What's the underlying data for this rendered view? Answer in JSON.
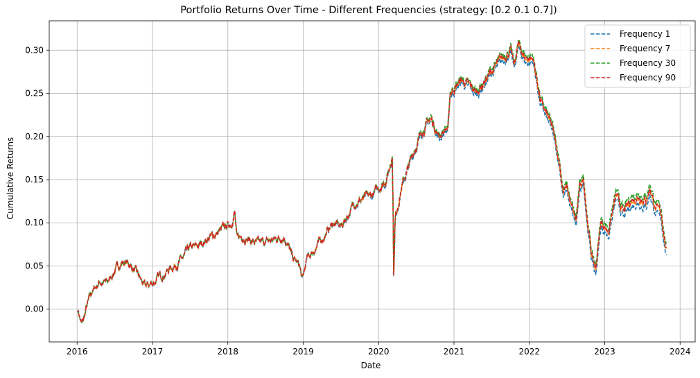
{
  "chart_data": {
    "type": "line",
    "title": "Portfolio Returns Over Time - Different Frequencies (strategy: [0.2 0.1 0.7])",
    "xlabel": "Date",
    "ylabel": "Cumulative Returns",
    "xlim": [
      2015.63,
      2024.2
    ],
    "ylim": [
      -0.038,
      0.334
    ],
    "x_ticks": [
      2016,
      2017,
      2018,
      2019,
      2020,
      2021,
      2022,
      2023,
      2024
    ],
    "x_tick_labels": [
      "2016",
      "2017",
      "2018",
      "2019",
      "2020",
      "2021",
      "2022",
      "2023",
      "2024"
    ],
    "y_ticks": [
      0.0,
      0.05,
      0.1,
      0.15,
      0.2,
      0.25,
      0.3
    ],
    "y_tick_labels": [
      "0.00",
      "0.05",
      "0.10",
      "0.15",
      "0.20",
      "0.25",
      "0.30"
    ],
    "grid": true,
    "line_style": "dashed",
    "legend_position": "top-right",
    "anchor_points": {
      "x": [
        2016.01,
        2016.06,
        2016.09,
        2016.12,
        2016.2,
        2016.3,
        2016.4,
        2016.5,
        2016.6,
        2016.7,
        2016.8,
        2016.9,
        2017.0,
        2017.2,
        2017.4,
        2017.5,
        2017.6,
        2017.7,
        2017.9,
        2018.05,
        2018.09,
        2018.12,
        2018.2,
        2018.4,
        2018.6,
        2018.75,
        2018.8,
        2018.85,
        2018.95,
        2018.99,
        2019.05,
        2019.2,
        2019.4,
        2019.5,
        2019.7,
        2019.9,
        2020.1,
        2020.15,
        2020.18,
        2020.19,
        2020.2,
        2020.22,
        2020.3,
        2020.5,
        2020.6,
        2020.7,
        2020.8,
        2020.9,
        2020.92,
        2020.95,
        2021.1,
        2021.3,
        2021.5,
        2021.6,
        2021.75,
        2021.8,
        2021.85,
        2021.95,
        2022.05,
        2022.15,
        2022.3,
        2022.4,
        2022.45,
        2022.5,
        2022.55,
        2022.62,
        2022.67,
        2022.72,
        2022.78,
        2022.83,
        2022.88,
        2022.95,
        2023.05,
        2023.15,
        2023.25,
        2023.35,
        2023.45,
        2023.55,
        2023.6,
        2023.68,
        2023.75,
        2023.82
      ],
      "y": [
        0.0,
        -0.018,
        -0.012,
        0.0,
        0.02,
        0.032,
        0.03,
        0.045,
        0.055,
        0.052,
        0.04,
        0.025,
        0.03,
        0.045,
        0.058,
        0.07,
        0.072,
        0.08,
        0.09,
        0.1,
        0.115,
        0.08,
        0.085,
        0.075,
        0.08,
        0.085,
        0.075,
        0.06,
        0.05,
        0.032,
        0.058,
        0.075,
        0.1,
        0.095,
        0.125,
        0.13,
        0.15,
        0.165,
        0.18,
        0.14,
        0.04,
        0.105,
        0.14,
        0.19,
        0.21,
        0.22,
        0.2,
        0.21,
        0.205,
        0.25,
        0.265,
        0.25,
        0.275,
        0.285,
        0.3,
        0.28,
        0.305,
        0.29,
        0.29,
        0.24,
        0.21,
        0.17,
        0.135,
        0.14,
        0.12,
        0.1,
        0.14,
        0.15,
        0.095,
        0.06,
        0.045,
        0.1,
        0.09,
        0.13,
        0.11,
        0.125,
        0.13,
        0.125,
        0.14,
        0.115,
        0.11,
        0.065
      ]
    },
    "series": [
      {
        "name": "Frequency 1",
        "color": "#1f77b4",
        "offset": -0.004
      },
      {
        "name": "Frequency 7",
        "color": "#ff7f0e",
        "offset": 0.0
      },
      {
        "name": "Frequency 30",
        "color": "#2ca02c",
        "offset": 0.004
      },
      {
        "name": "Frequency 90",
        "color": "#d62728",
        "offset": 0.001
      }
    ]
  }
}
